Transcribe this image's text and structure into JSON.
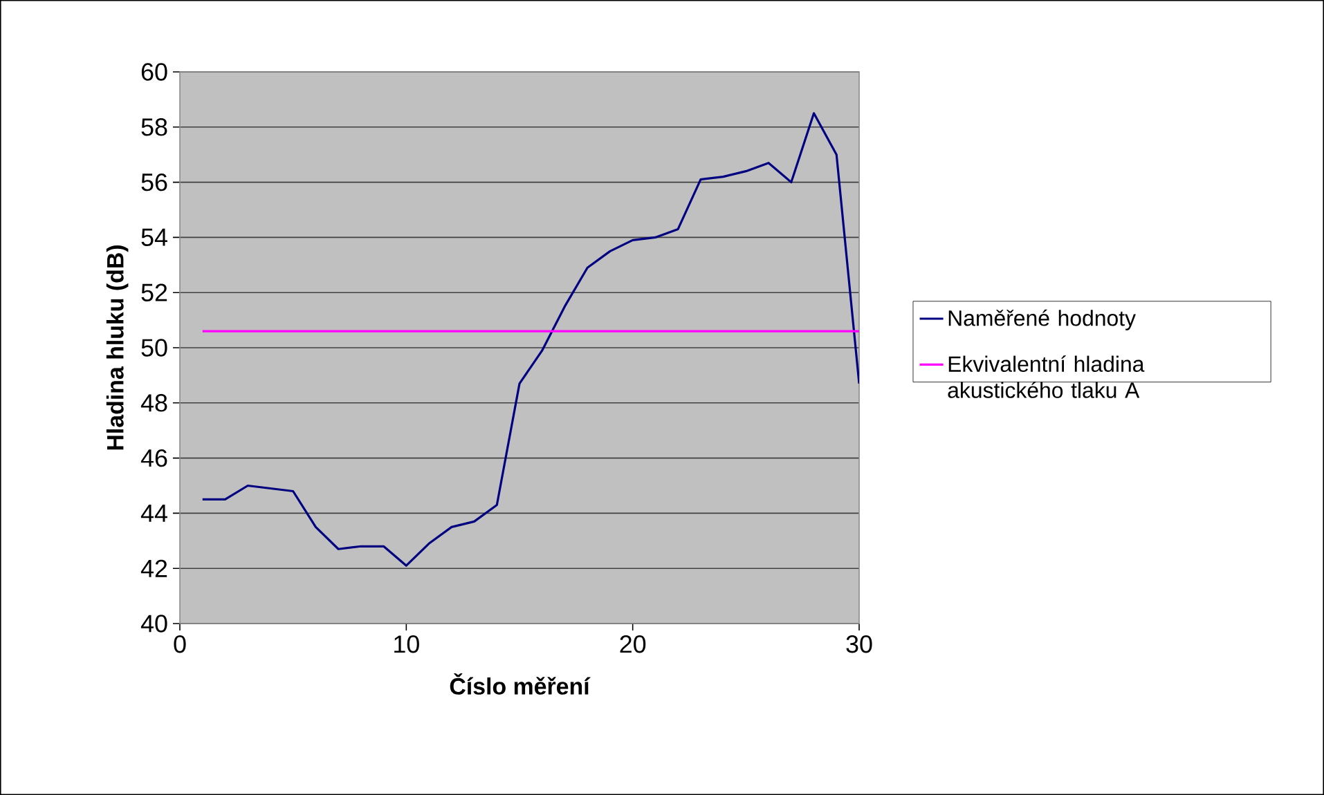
{
  "chart_data": {
    "type": "line",
    "xlabel": "Číslo měření",
    "ylabel": "Hladina hluku (dB)",
    "x": [
      1,
      2,
      3,
      4,
      5,
      6,
      7,
      8,
      9,
      10,
      11,
      12,
      13,
      14,
      15,
      16,
      17,
      18,
      19,
      20,
      21,
      22,
      23,
      24,
      25,
      26,
      27,
      28,
      29,
      30
    ],
    "series": [
      {
        "name": "Naměřené hodnoty",
        "color": "#000080",
        "values": [
          44.5,
          44.5,
          45.0,
          44.9,
          44.8,
          43.5,
          42.7,
          42.8,
          42.8,
          42.1,
          42.9,
          43.5,
          43.7,
          44.3,
          48.7,
          49.9,
          51.5,
          52.9,
          53.5,
          53.9,
          54.0,
          54.3,
          56.1,
          56.2,
          56.4,
          56.7,
          56.0,
          58.5,
          57.0,
          48.7
        ]
      },
      {
        "name": "Ekvivalentní hladina akustického tlaku A",
        "color": "#ff00ff",
        "x": [
          1,
          30
        ],
        "values": [
          50.6,
          50.6
        ]
      }
    ],
    "xlim": [
      0,
      30
    ],
    "ylim": [
      40,
      60
    ],
    "xticks": [
      0,
      10,
      20,
      30
    ],
    "yticks": [
      40,
      42,
      44,
      46,
      48,
      50,
      52,
      54,
      56,
      58,
      60
    ],
    "grid": "y",
    "legend": "right",
    "marker": "none",
    "line_style": "solid"
  }
}
